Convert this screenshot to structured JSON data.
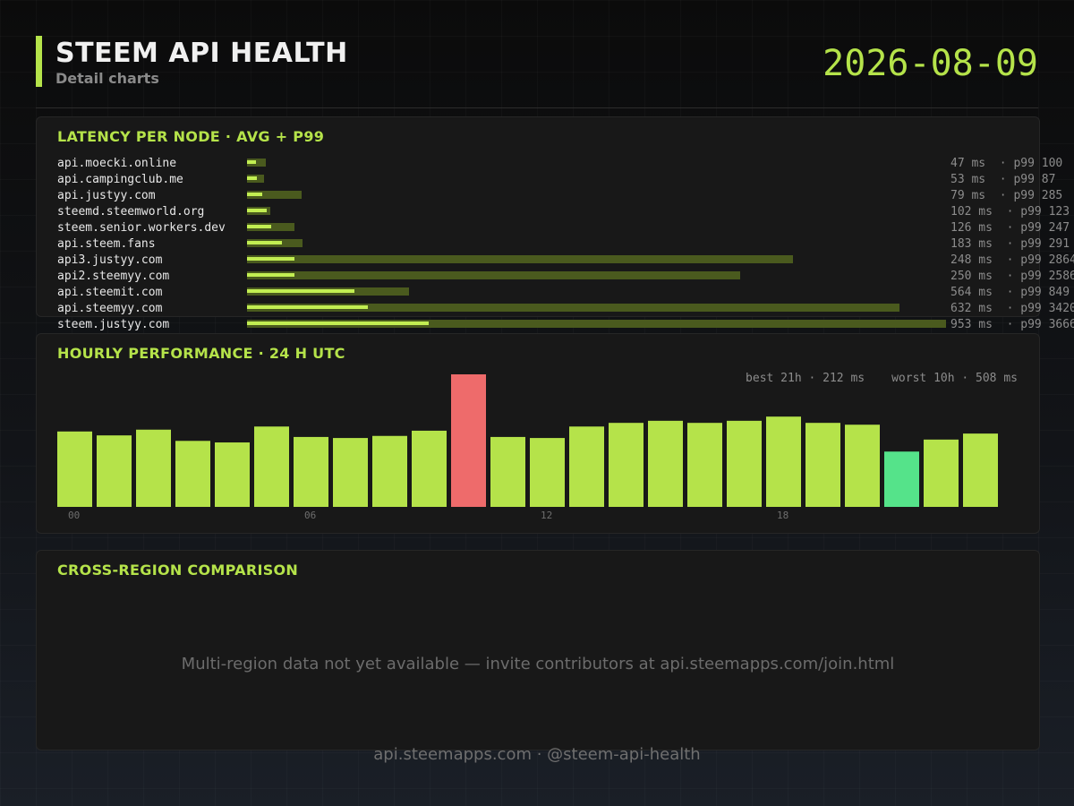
{
  "header": {
    "title": "STEEM API HEALTH",
    "subtitle": "Detail charts",
    "date": "2026-08-09"
  },
  "colors": {
    "accent": "#b5e34a",
    "p99_bar": "#4a5a1e",
    "worst": "#ee6b6b",
    "best": "#55e38a",
    "panel": "#181818"
  },
  "latency": {
    "title": "LATENCY PER NODE  ·  AVG + P99"
  },
  "hourly": {
    "title": "HOURLY PERFORMANCE  ·  24 H UTC",
    "best_label": "best 21h · 212 ms",
    "worst_label": "worst 10h · 508 ms"
  },
  "region": {
    "title": "CROSS-REGION COMPARISON",
    "message": "Multi-region data not yet available — invite contributors at api.steemapps.com/join.html"
  },
  "footer": {
    "text": "api.steemapps.com  ·  @steem-api-health"
  },
  "chart_data": [
    {
      "type": "bar",
      "title": "LATENCY PER NODE  ·  AVG + P99",
      "orientation": "horizontal",
      "unit": "ms",
      "xlim": [
        0,
        3666
      ],
      "categories": [
        "api.moecki.online",
        "api.campingclub.me",
        "api.justyy.com",
        "steemd.steemworld.org",
        "steem.senior.workers.dev",
        "api.steem.fans",
        "api3.justyy.com",
        "api2.steemyy.com",
        "api.steemit.com",
        "api.steemyy.com",
        "steem.justyy.com"
      ],
      "series": [
        {
          "name": "avg",
          "values": [
            47,
            53,
            79,
            102,
            126,
            183,
            248,
            250,
            564,
            632,
            953
          ]
        },
        {
          "name": "p99",
          "values": [
            100,
            87,
            285,
            123,
            247,
            291,
            2864,
            2586,
            849,
            3420,
            3666
          ]
        }
      ],
      "value_labels": [
        "47 ms  · p99 100",
        "53 ms  · p99 87",
        "79 ms  · p99 285",
        "102 ms  · p99 123",
        "126 ms  · p99 247",
        "183 ms  · p99 291",
        "248 ms  · p99 2864",
        "250 ms  · p99 2586",
        "564 ms  · p99 849",
        "632 ms  · p99 3420",
        "953 ms  · p99 3666"
      ]
    },
    {
      "type": "bar",
      "title": "HOURLY PERFORMANCE  ·  24 H UTC",
      "unit": "ms",
      "ylim": [
        0,
        508
      ],
      "categories": [
        "00",
        "01",
        "02",
        "03",
        "04",
        "05",
        "06",
        "07",
        "08",
        "09",
        "10",
        "11",
        "12",
        "13",
        "14",
        "15",
        "16",
        "17",
        "18",
        "19",
        "20",
        "21",
        "22",
        "23"
      ],
      "x_tick_labels": [
        "00",
        "06",
        "12",
        "18"
      ],
      "values": [
        289,
        274,
        296,
        253,
        247,
        308,
        268,
        264,
        272,
        292,
        508,
        268,
        264,
        308,
        322,
        330,
        322,
        330,
        346,
        322,
        315,
        212,
        258,
        281
      ],
      "best_index": 21,
      "worst_index": 10
    }
  ]
}
